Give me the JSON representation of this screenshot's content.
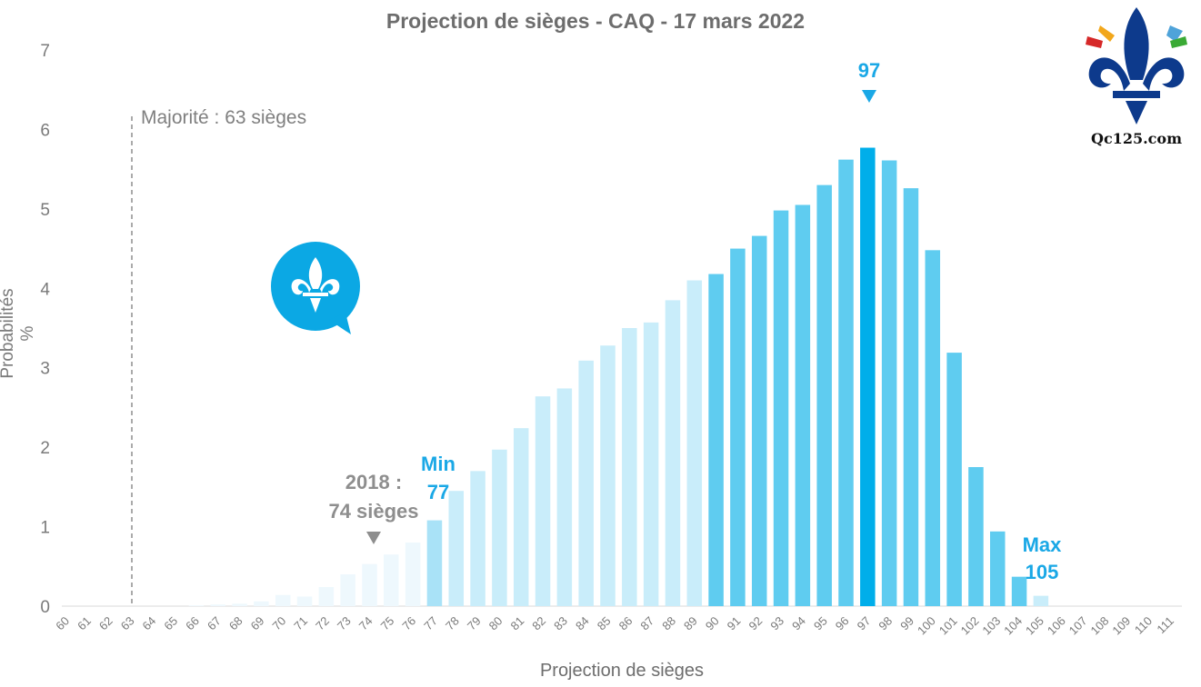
{
  "chart_data": {
    "type": "bar",
    "title": "Projection de sièges - CAQ - 17 mars 2022",
    "xlabel": "Projection de sièges",
    "ylabel": "Probabilités %",
    "ylim": [
      0,
      7
    ],
    "yticks": [
      "0",
      "1",
      "2",
      "3",
      "4",
      "5",
      "6",
      "7"
    ],
    "grid": false,
    "categories": [
      "60",
      "61",
      "62",
      "63",
      "64",
      "65",
      "66",
      "67",
      "68",
      "69",
      "70",
      "71",
      "72",
      "73",
      "74",
      "75",
      "76",
      "77",
      "78",
      "79",
      "80",
      "81",
      "82",
      "83",
      "84",
      "85",
      "86",
      "87",
      "88",
      "89",
      "90",
      "91",
      "92",
      "93",
      "94",
      "95",
      "96",
      "97",
      "98",
      "99",
      "100",
      "101",
      "102",
      "103",
      "104",
      "105",
      "106",
      "107",
      "108",
      "109",
      "110",
      "111"
    ],
    "values": [
      0,
      0,
      0,
      0,
      0,
      0,
      0.01,
      0.02,
      0.03,
      0.06,
      0.14,
      0.12,
      0.24,
      0.4,
      0.53,
      0.65,
      0.8,
      1.08,
      1.45,
      1.7,
      1.97,
      2.24,
      2.64,
      2.74,
      3.09,
      3.28,
      3.5,
      3.57,
      3.85,
      4.1,
      4.18,
      4.5,
      4.66,
      4.98,
      5.05,
      5.3,
      5.62,
      5.77,
      5.61,
      5.26,
      4.48,
      3.19,
      1.75,
      0.94,
      0.37,
      0.13,
      0,
      0,
      0,
      0,
      0,
      0
    ],
    "annotations": {
      "majority": "Majorité : 63 sièges",
      "previous_line1": "2018 :",
      "previous_line2": "74 sièges",
      "min_line1": "Min",
      "min_line2": "77",
      "mode": "97",
      "max_line1": "Max",
      "max_line2": "105"
    },
    "colors": {
      "pale": "#eef8fd",
      "light": "#c9edfa",
      "mid": "#5fccf0",
      "peak": "#00aeea",
      "accent": "#1aa8e6",
      "marker_gray": "#8e8e8e"
    }
  },
  "logo": {
    "brand": "Qc125.com"
  }
}
